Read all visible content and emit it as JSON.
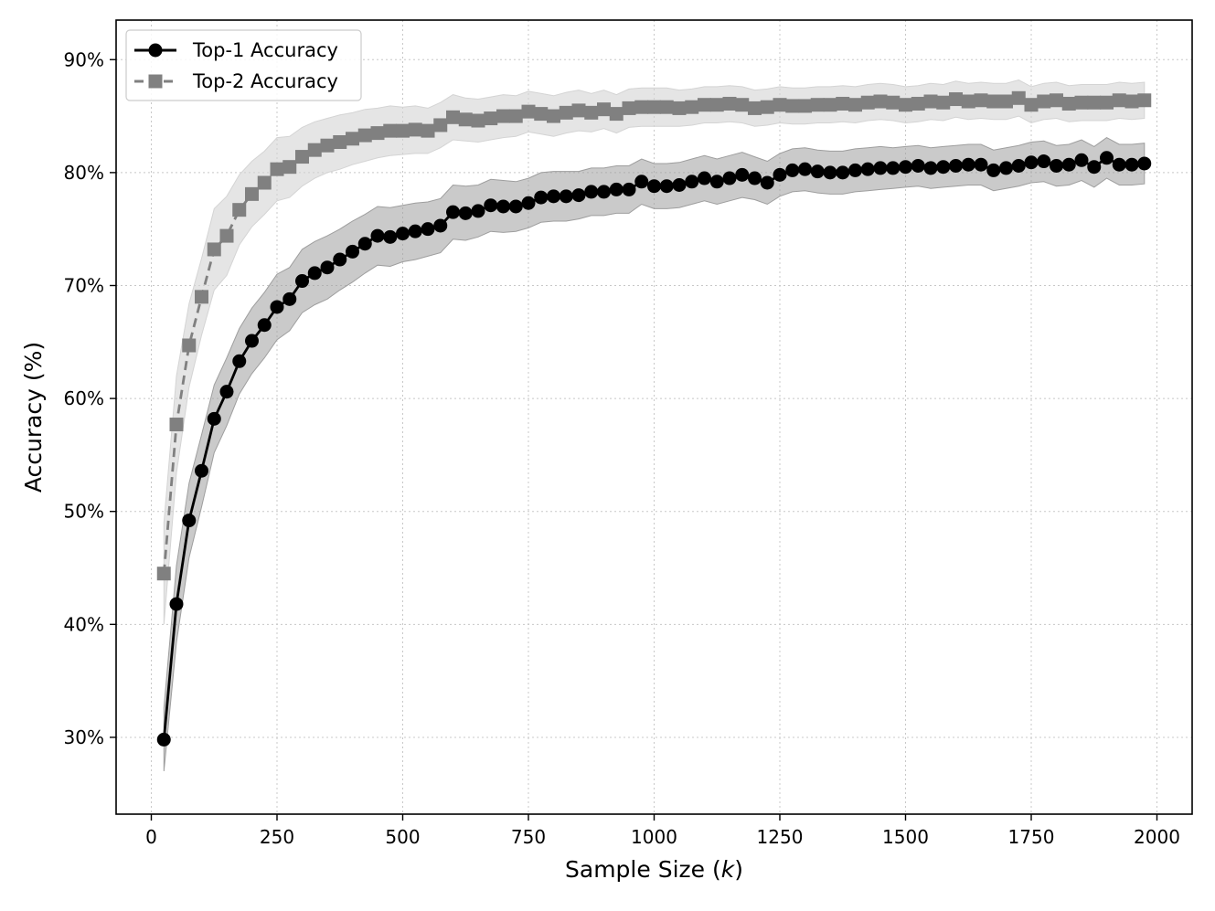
{
  "chart_data": {
    "type": "line",
    "xlabel": "Sample Size (",
    "xlabel_var": "k",
    "xlabel_end": ")",
    "ylabel": "Accuracy (%)",
    "xlim": [
      -70,
      2070
    ],
    "ylim": [
      23.2,
      93.5
    ],
    "xticks": [
      0,
      250,
      500,
      750,
      1000,
      1250,
      1500,
      1750,
      2000
    ],
    "xtick_labels": [
      "0",
      "250",
      "500",
      "750",
      "1000",
      "1250",
      "1500",
      "1750",
      "2000"
    ],
    "yticks": [
      30,
      40,
      50,
      60,
      70,
      80,
      90
    ],
    "ytick_labels": [
      "30%",
      "40%",
      "50%",
      "60%",
      "70%",
      "80%",
      "90%"
    ],
    "grid": true,
    "legend_position": "top-left",
    "x": [
      25,
      50,
      75,
      100,
      125,
      150,
      175,
      200,
      225,
      250,
      275,
      300,
      325,
      350,
      375,
      400,
      425,
      450,
      475,
      500,
      525,
      550,
      575,
      600,
      625,
      650,
      675,
      700,
      725,
      750,
      775,
      800,
      825,
      850,
      875,
      900,
      925,
      950,
      975,
      1000,
      1025,
      1050,
      1075,
      1100,
      1125,
      1150,
      1175,
      1200,
      1225,
      1250,
      1275,
      1300,
      1325,
      1350,
      1375,
      1400,
      1425,
      1450,
      1475,
      1500,
      1525,
      1550,
      1575,
      1600,
      1625,
      1650,
      1675,
      1700,
      1725,
      1750,
      1775,
      1800,
      1825,
      1850,
      1875,
      1900,
      1925,
      1950,
      1975
    ],
    "series": [
      {
        "name": "Top-1 Accuracy",
        "color": "#000000",
        "band_color": "#9e9e9e",
        "marker": "circle",
        "linestyle": "solid",
        "values": [
          29.8,
          41.8,
          49.2,
          53.6,
          58.2,
          60.6,
          63.3,
          65.1,
          66.5,
          68.1,
          68.8,
          70.4,
          71.1,
          71.6,
          72.3,
          73.0,
          73.7,
          74.4,
          74.3,
          74.6,
          74.8,
          75.0,
          75.3,
          76.5,
          76.4,
          76.6,
          77.1,
          77.0,
          77.0,
          77.3,
          77.8,
          77.9,
          77.9,
          78.0,
          78.3,
          78.3,
          78.5,
          78.5,
          79.2,
          78.8,
          78.8,
          78.9,
          79.2,
          79.5,
          79.2,
          79.5,
          79.8,
          79.5,
          79.1,
          79.8,
          80.2,
          80.3,
          80.1,
          80.0,
          80.0,
          80.2,
          80.3,
          80.4,
          80.4,
          80.5,
          80.6,
          80.4,
          80.5,
          80.6,
          80.7,
          80.7,
          80.2,
          80.4,
          80.6,
          80.9,
          81.0,
          80.6,
          80.7,
          81.1,
          80.5,
          81.3,
          80.7,
          80.7,
          80.8
        ],
        "band": [
          2.8,
          3.4,
          3.3,
          3.2,
          3.0,
          3.0,
          2.9,
          2.9,
          2.9,
          2.9,
          2.8,
          2.8,
          2.8,
          2.8,
          2.7,
          2.7,
          2.6,
          2.6,
          2.6,
          2.5,
          2.5,
          2.4,
          2.4,
          2.4,
          2.4,
          2.3,
          2.3,
          2.3,
          2.2,
          2.2,
          2.2,
          2.2,
          2.2,
          2.1,
          2.1,
          2.1,
          2.1,
          2.1,
          2.0,
          2.0,
          2.0,
          2.0,
          2.0,
          2.0,
          2.0,
          2.0,
          2.0,
          1.9,
          1.9,
          1.9,
          1.9,
          1.9,
          1.9,
          1.9,
          1.9,
          1.9,
          1.9,
          1.9,
          1.8,
          1.8,
          1.8,
          1.8,
          1.8,
          1.8,
          1.8,
          1.8,
          1.8,
          1.8,
          1.8,
          1.8,
          1.8,
          1.8,
          1.8,
          1.8,
          1.8,
          1.8,
          1.8,
          1.8,
          1.8
        ]
      },
      {
        "name": "Top-2 Accuracy",
        "color": "#808080",
        "band_color": "#d4d4d4",
        "marker": "square",
        "linestyle": "dashed",
        "values": [
          44.5,
          57.7,
          64.7,
          69.0,
          73.2,
          74.4,
          76.7,
          78.1,
          79.1,
          80.3,
          80.5,
          81.4,
          82.0,
          82.4,
          82.7,
          83.0,
          83.3,
          83.5,
          83.7,
          83.7,
          83.8,
          83.7,
          84.2,
          84.9,
          84.7,
          84.6,
          84.8,
          85.0,
          85.0,
          85.4,
          85.2,
          85.0,
          85.3,
          85.5,
          85.3,
          85.6,
          85.2,
          85.7,
          85.8,
          85.8,
          85.8,
          85.7,
          85.8,
          86.0,
          86.0,
          86.1,
          86.0,
          85.7,
          85.8,
          86.0,
          85.9,
          85.9,
          86.0,
          86.0,
          86.1,
          86.0,
          86.2,
          86.3,
          86.2,
          86.0,
          86.1,
          86.3,
          86.2,
          86.5,
          86.3,
          86.4,
          86.3,
          86.3,
          86.6,
          86.0,
          86.3,
          86.4,
          86.1,
          86.2,
          86.2,
          86.2,
          86.4,
          86.3,
          86.4
        ],
        "band": [
          4.5,
          4.3,
          3.7,
          3.4,
          3.6,
          3.5,
          3.1,
          2.9,
          2.8,
          2.8,
          2.7,
          2.6,
          2.5,
          2.4,
          2.4,
          2.3,
          2.3,
          2.2,
          2.2,
          2.1,
          2.1,
          2.0,
          2.0,
          2.0,
          1.9,
          1.9,
          1.9,
          1.9,
          1.8,
          1.8,
          1.8,
          1.8,
          1.8,
          1.8,
          1.7,
          1.7,
          1.7,
          1.7,
          1.7,
          1.7,
          1.7,
          1.6,
          1.6,
          1.6,
          1.6,
          1.6,
          1.6,
          1.6,
          1.6,
          1.6,
          1.6,
          1.6,
          1.6,
          1.6,
          1.6,
          1.6,
          1.6,
          1.6,
          1.6,
          1.6,
          1.6,
          1.6,
          1.6,
          1.6,
          1.6,
          1.6,
          1.6,
          1.6,
          1.6,
          1.6,
          1.6,
          1.6,
          1.6,
          1.6,
          1.6,
          1.6,
          1.6,
          1.6,
          1.6
        ]
      }
    ]
  }
}
